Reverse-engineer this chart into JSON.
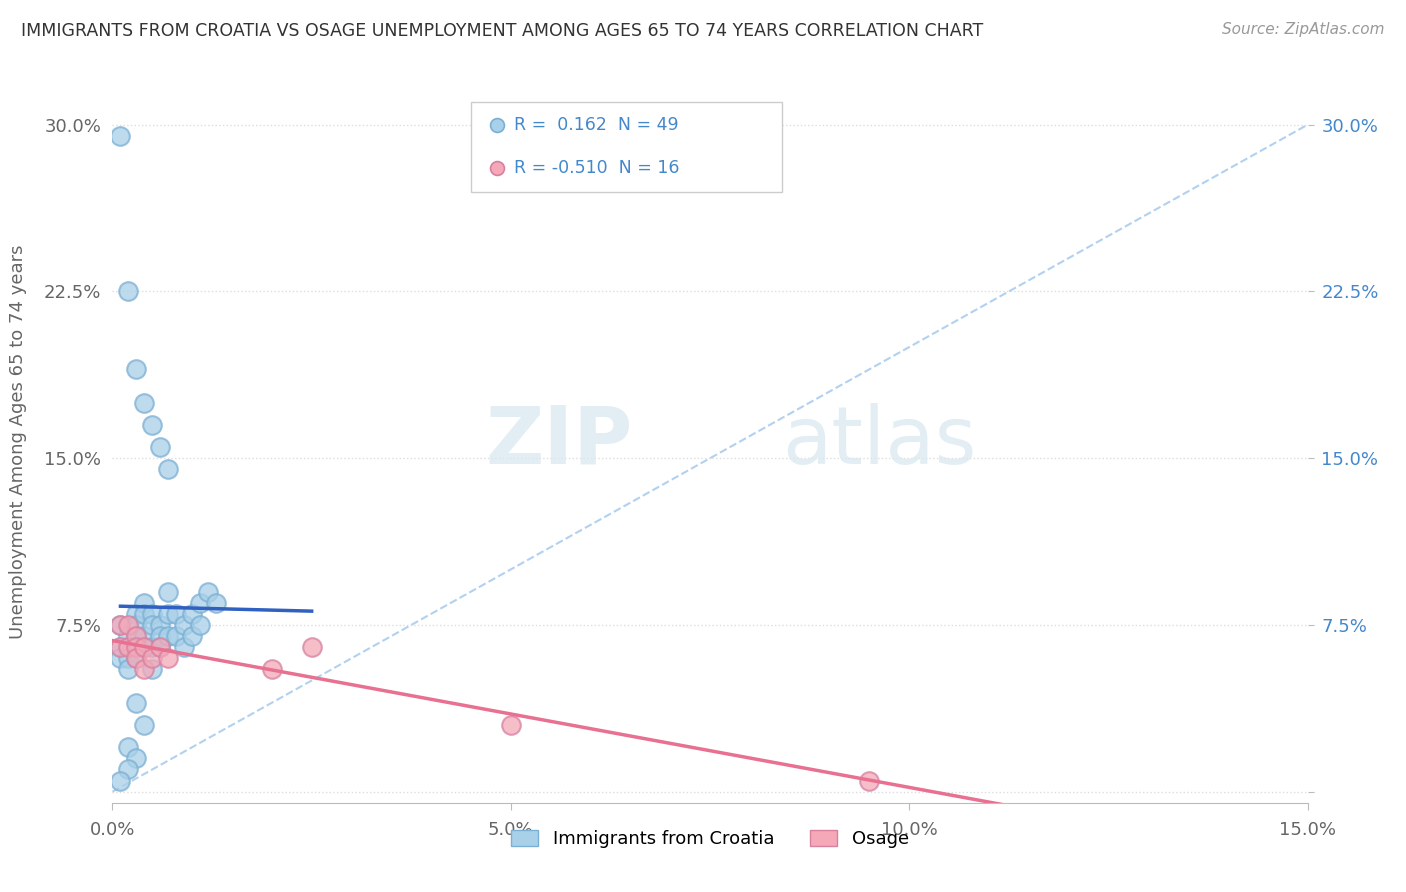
{
  "title": "IMMIGRANTS FROM CROATIA VS OSAGE UNEMPLOYMENT AMONG AGES 65 TO 74 YEARS CORRELATION CHART",
  "source": "Source: ZipAtlas.com",
  "ylabel": "Unemployment Among Ages 65 to 74 years",
  "xlim": [
    0.0,
    0.15
  ],
  "ylim": [
    -0.005,
    0.32
  ],
  "xticks": [
    0.0,
    0.05,
    0.1,
    0.15
  ],
  "xtick_labels": [
    "0.0%",
    "5.0%",
    "10.0%",
    "15.0%"
  ],
  "yticks": [
    0.0,
    0.075,
    0.15,
    0.225,
    0.3
  ],
  "ytick_labels": [
    "",
    "7.5%",
    "15.0%",
    "22.5%",
    "30.0%"
  ],
  "legend_entries": [
    {
      "label": "Immigrants from Croatia",
      "color": "#A8D0E8",
      "R": "0.162",
      "N": "49"
    },
    {
      "label": "Osage",
      "color": "#F4A8B8",
      "R": "-0.510",
      "N": "16"
    }
  ],
  "watermark_zip": "ZIP",
  "watermark_atlas": "atlas",
  "croatia_scatter_x": [
    0.001,
    0.001,
    0.001,
    0.002,
    0.002,
    0.002,
    0.002,
    0.003,
    0.003,
    0.003,
    0.003,
    0.003,
    0.004,
    0.004,
    0.004,
    0.004,
    0.005,
    0.005,
    0.005,
    0.005,
    0.006,
    0.006,
    0.006,
    0.007,
    0.007,
    0.007,
    0.008,
    0.008,
    0.009,
    0.009,
    0.01,
    0.01,
    0.011,
    0.011,
    0.012,
    0.013,
    0.001,
    0.002,
    0.003,
    0.004,
    0.005,
    0.006,
    0.007,
    0.002,
    0.003,
    0.003,
    0.004,
    0.002,
    0.001
  ],
  "croatia_scatter_y": [
    0.075,
    0.065,
    0.06,
    0.07,
    0.065,
    0.06,
    0.055,
    0.08,
    0.075,
    0.07,
    0.065,
    0.06,
    0.085,
    0.08,
    0.07,
    0.065,
    0.08,
    0.075,
    0.065,
    0.055,
    0.075,
    0.07,
    0.065,
    0.09,
    0.08,
    0.07,
    0.08,
    0.07,
    0.075,
    0.065,
    0.08,
    0.07,
    0.085,
    0.075,
    0.09,
    0.085,
    0.295,
    0.225,
    0.19,
    0.175,
    0.165,
    0.155,
    0.145,
    0.02,
    0.015,
    0.04,
    0.03,
    0.01,
    0.005
  ],
  "osage_scatter_x": [
    0.001,
    0.001,
    0.002,
    0.002,
    0.003,
    0.003,
    0.003,
    0.004,
    0.004,
    0.005,
    0.006,
    0.007,
    0.05,
    0.095,
    0.02,
    0.025
  ],
  "osage_scatter_y": [
    0.075,
    0.065,
    0.075,
    0.065,
    0.07,
    0.065,
    0.06,
    0.065,
    0.055,
    0.06,
    0.065,
    0.06,
    0.03,
    0.005,
    0.055,
    0.065
  ],
  "croatia_line_color": "#3060C0",
  "osage_line_color": "#E87090",
  "diag_line_color": "#AACCEE",
  "background_color": "#FFFFFF",
  "grid_color": "#DDDDDD"
}
